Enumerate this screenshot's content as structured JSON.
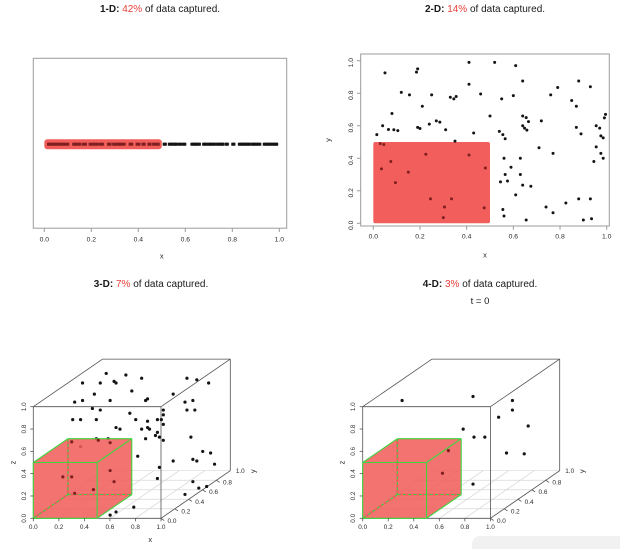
{
  "page": {
    "background": "#ffffff"
  },
  "colors": {
    "region_red": "#f15e5c",
    "region_edge_green": "#3ed43e",
    "hidden_edge_red": "#bb3434",
    "point_black": "#141414",
    "point_in_region": "#801f1f",
    "grid_gray": "#d6d6d6",
    "box_gray": "#9b9b9b",
    "cube_line": "#525252",
    "pct_red": "#e8403a",
    "text": "#1a1a1a"
  },
  "scrollbar": {
    "present": true
  },
  "chart_data": [
    {
      "id": "1d",
      "type": "scatter",
      "dimensions": 1,
      "title": "1-D: 42% of data captured.",
      "title_parts": {
        "dim": "1-D",
        "sep": ": ",
        "pct": "42%",
        "rest": " of data captured."
      },
      "xlabel": "x",
      "xlim": [
        0,
        1
      ],
      "x_ticks": [
        "0.0",
        "0.2",
        "0.4",
        "0.6",
        "0.8",
        "1.0"
      ],
      "captured_region": {
        "x": [
          0,
          0.5
        ]
      },
      "captured_pct": 42,
      "x": [
        0.018,
        0.025,
        0.032,
        0.04,
        0.048,
        0.055,
        0.063,
        0.072,
        0.08,
        0.09,
        0.1,
        0.125,
        0.133,
        0.14,
        0.15,
        0.165,
        0.175,
        0.195,
        0.205,
        0.215,
        0.225,
        0.238,
        0.248,
        0.273,
        0.28,
        0.295,
        0.305,
        0.315,
        0.322,
        0.33,
        0.34,
        0.365,
        0.372,
        0.395,
        0.403,
        0.42,
        0.425,
        0.445,
        0.45,
        0.465,
        0.475,
        0.485,
        0.51,
        0.515,
        0.532,
        0.538,
        0.545,
        0.552,
        0.558,
        0.563,
        0.575,
        0.58,
        0.592,
        0.598,
        0.628,
        0.634,
        0.64,
        0.647,
        0.653,
        0.66,
        0.678,
        0.684,
        0.69,
        0.7,
        0.705,
        0.712,
        0.719,
        0.725,
        0.737,
        0.743,
        0.75,
        0.757,
        0.76,
        0.774,
        0.779,
        0.802,
        0.807,
        0.83,
        0.836,
        0.842,
        0.849,
        0.855,
        0.862,
        0.868,
        0.873,
        0.885,
        0.89,
        0.896,
        0.903,
        0.91,
        0.917,
        0.936,
        0.942,
        0.949,
        0.956,
        0.963,
        0.97,
        0.977,
        0.984,
        0.989
      ]
    },
    {
      "id": "2d",
      "type": "scatter",
      "dimensions": 2,
      "title": "2-D: 14% of data captured.",
      "title_parts": {
        "dim": "2-D",
        "sep": ": ",
        "pct": "14%",
        "rest": " of data captured."
      },
      "xlabel": "x",
      "ylabel": "y",
      "xlim": [
        0,
        1
      ],
      "ylim": [
        0,
        1
      ],
      "x_ticks": [
        "0.0",
        "0.2",
        "0.4",
        "0.6",
        "0.8",
        "1.0"
      ],
      "y_ticks": [
        "0.0",
        "0.2",
        "0.4",
        "0.6",
        "0.8",
        "1.0"
      ],
      "captured_region": {
        "x": [
          0,
          0.5
        ],
        "y": [
          0,
          0.5
        ]
      },
      "captured_pct": 14,
      "points": [
        [
          0.03,
          0.49
        ],
        [
          0.045,
          0.485
        ],
        [
          0.035,
          0.335
        ],
        [
          0.075,
          0.38
        ],
        [
          0.15,
          0.315
        ],
        [
          0.095,
          0.25
        ],
        [
          0.225,
          0.425
        ],
        [
          0.245,
          0.15
        ],
        [
          0.3,
          0.035
        ],
        [
          0.305,
          0.1
        ],
        [
          0.335,
          0.15
        ],
        [
          0.41,
          0.42
        ],
        [
          0.48,
          0.34
        ],
        [
          0.475,
          0.095
        ],
        [
          0.41,
          0.99
        ],
        [
          0.52,
          0.99
        ],
        [
          0.61,
          0.97
        ],
        [
          0.19,
          0.95
        ],
        [
          0.185,
          0.93
        ],
        [
          0.05,
          0.925
        ],
        [
          0.64,
          0.875
        ],
        [
          0.88,
          0.875
        ],
        [
          0.41,
          0.855
        ],
        [
          0.93,
          0.84
        ],
        [
          0.79,
          0.835
        ],
        [
          0.12,
          0.805
        ],
        [
          0.155,
          0.79
        ],
        [
          0.25,
          0.79
        ],
        [
          0.46,
          0.795
        ],
        [
          0.6,
          0.785
        ],
        [
          0.76,
          0.79
        ],
        [
          0.33,
          0.775
        ],
        [
          0.345,
          0.765
        ],
        [
          0.355,
          0.78
        ],
        [
          0.55,
          0.765
        ],
        [
          0.85,
          0.755
        ],
        [
          0.21,
          0.72
        ],
        [
          0.87,
          0.72
        ],
        [
          0.08,
          0.675
        ],
        [
          0.5,
          0.66
        ],
        [
          0.64,
          0.66
        ],
        [
          0.655,
          0.65
        ],
        [
          0.995,
          0.67
        ],
        [
          0.99,
          0.648
        ],
        [
          0.27,
          0.63
        ],
        [
          0.285,
          0.622
        ],
        [
          0.665,
          0.625
        ],
        [
          0.72,
          0.63
        ],
        [
          0.04,
          0.6
        ],
        [
          0.24,
          0.61
        ],
        [
          0.19,
          0.59
        ],
        [
          0.2,
          0.583
        ],
        [
          0.065,
          0.577
        ],
        [
          0.088,
          0.575
        ],
        [
          0.105,
          0.57
        ],
        [
          0.31,
          0.575
        ],
        [
          0.64,
          0.6
        ],
        [
          0.648,
          0.585
        ],
        [
          0.658,
          0.573
        ],
        [
          0.87,
          0.59
        ],
        [
          0.955,
          0.6
        ],
        [
          0.97,
          0.585
        ],
        [
          0.015,
          0.545
        ],
        [
          0.43,
          0.555
        ],
        [
          0.54,
          0.565
        ],
        [
          0.555,
          0.545
        ],
        [
          0.89,
          0.55
        ],
        [
          0.975,
          0.538
        ],
        [
          0.985,
          0.525
        ],
        [
          0.35,
          0.505
        ],
        [
          0.565,
          0.52
        ],
        [
          0.71,
          0.465
        ],
        [
          0.955,
          0.47
        ],
        [
          0.77,
          0.43
        ],
        [
          0.975,
          0.43
        ],
        [
          0.56,
          0.4
        ],
        [
          0.63,
          0.4
        ],
        [
          0.985,
          0.4
        ],
        [
          0.945,
          0.38
        ],
        [
          0.59,
          0.345
        ],
        [
          0.565,
          0.3
        ],
        [
          0.63,
          0.3
        ],
        [
          0.575,
          0.26
        ],
        [
          0.545,
          0.255
        ],
        [
          0.64,
          0.235
        ],
        [
          0.675,
          0.228
        ],
        [
          0.61,
          0.175
        ],
        [
          0.88,
          0.15
        ],
        [
          0.93,
          0.15
        ],
        [
          0.825,
          0.125
        ],
        [
          0.555,
          0.085
        ],
        [
          0.74,
          0.1
        ],
        [
          0.77,
          0.065
        ],
        [
          0.655,
          0.02
        ],
        [
          0.9,
          0.02
        ],
        [
          0.935,
          0.028
        ],
        [
          0.56,
          0.045
        ]
      ]
    },
    {
      "id": "3d",
      "type": "scatter3d",
      "dimensions": 3,
      "title": "3-D: 7% of data captured.",
      "title_parts": {
        "dim": "3-D",
        "sep": ": ",
        "pct": "7%",
        "rest": " of data captured."
      },
      "xlabel": "x",
      "ylabel": "y",
      "zlabel": "z",
      "xlim": [
        0,
        1
      ],
      "ylim": [
        0,
        1
      ],
      "zlim": [
        0,
        1
      ],
      "x_ticks": [
        "0.0",
        "0.2",
        "0.4",
        "0.6",
        "0.8",
        "1.0"
      ],
      "y_ticks": [
        "0.0",
        "0.2",
        "0.4",
        "0.6",
        "0.8",
        "1.0"
      ],
      "z_ticks": [
        "0.0",
        "0.2",
        "0.4",
        "0.6",
        "0.8",
        "1.0"
      ],
      "captured_region": {
        "x": [
          0,
          0.5
        ],
        "y": [
          0,
          0.5
        ],
        "z": [
          0,
          0.5
        ]
      },
      "captured_pct": 7,
      "floor_grid": true,
      "points_projected": {
        "black": [
          [
            0.37,
            0.91
          ],
          [
            0.47,
            0.9
          ],
          [
            0.55,
            0.88
          ],
          [
            0.41,
            0.86
          ],
          [
            0.42,
            0.85
          ],
          [
            0.25,
            0.85
          ],
          [
            0.34,
            0.85
          ],
          [
            0.78,
            0.88
          ],
          [
            0.83,
            0.87
          ],
          [
            0.89,
            0.85
          ],
          [
            0.5,
            0.8
          ],
          [
            0.58,
            0.75
          ],
          [
            0.57,
            0.74
          ],
          [
            0.31,
            0.78
          ],
          [
            0.21,
            0.73
          ],
          [
            0.25,
            0.74
          ],
          [
            0.39,
            0.74
          ],
          [
            0.3,
            0.69
          ],
          [
            0.34,
            0.68
          ],
          [
            0.49,
            0.66
          ],
          [
            0.71,
            0.78
          ],
          [
            0.77,
            0.73
          ],
          [
            0.81,
            0.74
          ],
          [
            0.66,
            0.68
          ],
          [
            0.66,
            0.65
          ],
          [
            0.78,
            0.68
          ],
          [
            0.82,
            0.68
          ],
          [
            0.2,
            0.62
          ],
          [
            0.24,
            0.62
          ],
          [
            0.32,
            0.62
          ],
          [
            0.52,
            0.62
          ],
          [
            0.58,
            0.61
          ],
          [
            0.63,
            0.62
          ],
          [
            0.65,
            0.62
          ],
          [
            0.66,
            0.59
          ],
          [
            0.42,
            0.57
          ],
          [
            0.44,
            0.56
          ],
          [
            0.55,
            0.56
          ],
          [
            0.58,
            0.57
          ],
          [
            0.59,
            0.56
          ],
          [
            0.63,
            0.54
          ],
          [
            0.62,
            0.52
          ],
          [
            0.64,
            0.51
          ],
          [
            0.57,
            0.5
          ],
          [
            0.66,
            0.49
          ],
          [
            0.8,
            0.51
          ],
          [
            0.32,
            0.5
          ],
          [
            0.38,
            0.5
          ],
          [
            0.24,
            0.45
          ],
          [
            0.53,
            0.39
          ],
          [
            0.64,
            0.32
          ],
          [
            0.86,
            0.42
          ],
          [
            0.9,
            0.41
          ],
          [
            0.81,
            0.37
          ],
          [
            0.83,
            0.36
          ],
          [
            0.92,
            0.34
          ],
          [
            0.71,
            0.36
          ],
          [
            0.63,
            0.25
          ],
          [
            0.81,
            0.23
          ],
          [
            0.77,
            0.15
          ],
          [
            0.84,
            0.19
          ],
          [
            0.88,
            0.2
          ],
          [
            0.42,
            0.04
          ],
          [
            0.51,
            0.07
          ],
          [
            0.39,
            0.02
          ]
        ],
        "red": [
          [
            0.195,
            0.48
          ],
          [
            0.33,
            0.49
          ],
          [
            0.39,
            0.475
          ],
          [
            0.15,
            0.26
          ],
          [
            0.195,
            0.26
          ],
          [
            0.305,
            0.18
          ],
          [
            0.21,
            0.157
          ],
          [
            0.39,
            0.3
          ],
          [
            0.41,
            0.23
          ]
        ]
      }
    },
    {
      "id": "4d",
      "type": "scatter3d",
      "dimensions": 4,
      "title": "4-D: 3% of data captured.",
      "subtitle": "t = 0",
      "title_parts": {
        "dim": "4-D",
        "sep": ": ",
        "pct": "3%",
        "rest": " of data captured."
      },
      "xlabel": "x",
      "ylabel": "y",
      "zlabel": "z",
      "xlim": [
        0,
        1
      ],
      "ylim": [
        0,
        1
      ],
      "zlim": [
        0,
        1
      ],
      "x_ticks": [
        "0.0",
        "0.2",
        "0.4",
        "0.6",
        "0.8",
        "1.0"
      ],
      "y_ticks": [
        "0.0",
        "0.2",
        "0.4",
        "0.6",
        "0.8",
        "1.0"
      ],
      "z_ticks": [
        "0.0",
        "0.2",
        "0.4",
        "0.6",
        "0.8",
        "1.0"
      ],
      "captured_region": {
        "x": [
          0,
          0.5
        ],
        "y": [
          0,
          0.5
        ],
        "z": [
          0,
          0.5
        ]
      },
      "captured_pct": 3,
      "floor_grid": true,
      "points_projected": {
        "black": [
          [
            0.2,
            0.74
          ],
          [
            0.56,
            0.765
          ],
          [
            0.76,
            0.74
          ],
          [
            0.76,
            0.68
          ],
          [
            0.69,
            0.635
          ],
          [
            0.84,
            0.58
          ],
          [
            0.51,
            0.56
          ],
          [
            0.565,
            0.51
          ],
          [
            0.62,
            0.51
          ],
          [
            0.73,
            0.41
          ],
          [
            0.82,
            0.405
          ],
          [
            0.56,
            0.215
          ]
        ],
        "red": [
          [
            0.435,
            0.425
          ],
          [
            0.405,
            0.283
          ]
        ]
      }
    }
  ]
}
